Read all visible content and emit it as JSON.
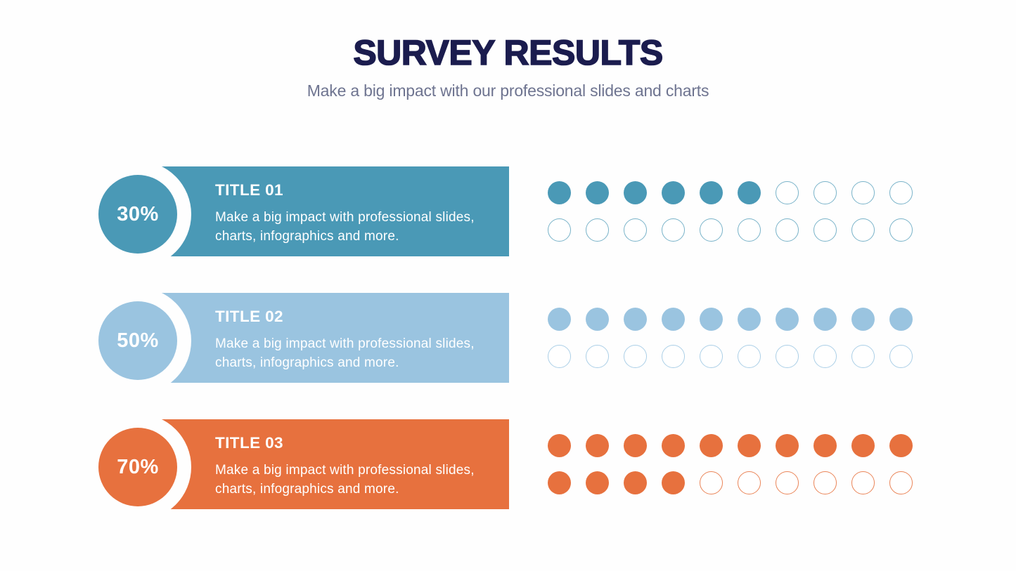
{
  "header": {
    "title": "SURVEY RESULTS",
    "subtitle": "Make a big impact with our professional slides and charts"
  },
  "chart_data": {
    "type": "bar",
    "title": "SURVEY RESULTS",
    "subtitle": "Make a big impact with our professional slides and charts",
    "categories": [
      "TITLE 01",
      "TITLE 02",
      "TITLE 03"
    ],
    "values": [
      30,
      50,
      70
    ],
    "unit": "%",
    "dot_matrix": {
      "dots_per_item": 20,
      "filled_counts": [
        6,
        10,
        14
      ]
    }
  },
  "rows": [
    {
      "percent_label": "30%",
      "percent": 30,
      "title": "TITLE 01",
      "description": "Make a big impact with professional slides, charts, infographics and more.",
      "color": "#4A99B6",
      "outline": "#79B3C9",
      "filled_dots": 6,
      "total_dots": 20
    },
    {
      "percent_label": "50%",
      "percent": 50,
      "title": "TITLE 02",
      "description": "Make a big impact with professional slides, charts, infographics and more.",
      "color": "#9AC4E0",
      "outline": "#ABCFE7",
      "filled_dots": 10,
      "total_dots": 20
    },
    {
      "percent_label": "70%",
      "percent": 70,
      "title": "TITLE 03",
      "description": "Make a big impact with professional slides, charts, infographics and more.",
      "color": "#E7713E",
      "outline": "#EA8558",
      "filled_dots": 14,
      "total_dots": 20
    }
  ]
}
